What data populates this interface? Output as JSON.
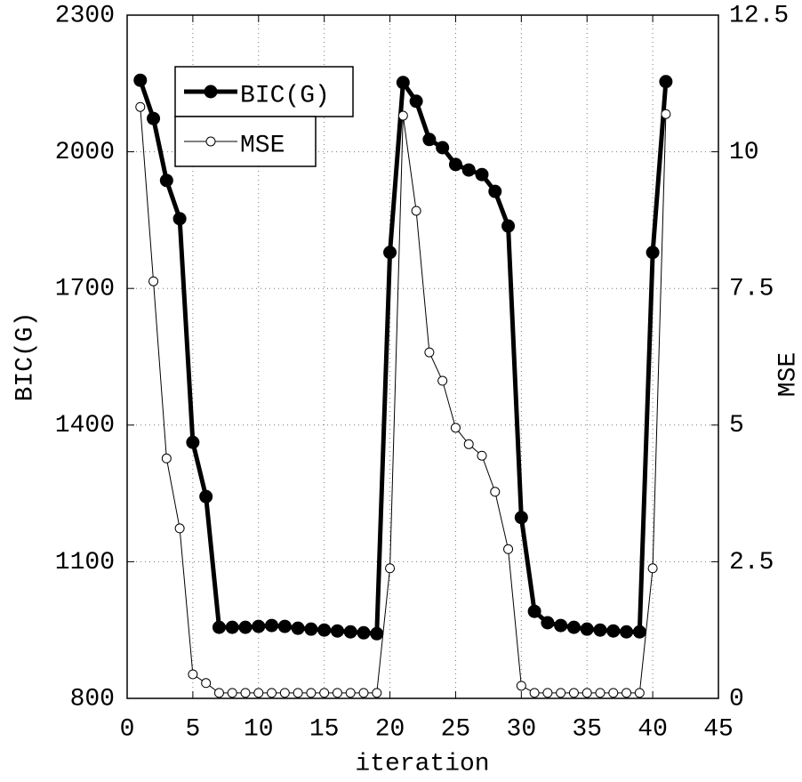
{
  "chart_data": {
    "type": "line",
    "x_label": "iteration",
    "y_label": "BIC(G)",
    "y2_label": "MSE",
    "x": [
      1,
      2,
      3,
      4,
      5,
      6,
      7,
      8,
      9,
      10,
      11,
      12,
      13,
      14,
      15,
      16,
      17,
      18,
      19,
      20,
      21,
      22,
      23,
      24,
      25,
      26,
      27,
      28,
      29,
      30,
      31,
      32,
      33,
      34,
      35,
      36,
      37,
      38,
      39,
      40,
      41
    ],
    "series": [
      {
        "name": "BIC(G)",
        "color": "#000000",
        "axis": "y",
        "values": [
          2157,
          2073,
          1937,
          1853,
          1362,
          1243,
          956,
          956,
          956,
          958,
          960,
          958,
          954,
          952,
          950,
          948,
          946,
          944,
          942,
          1779,
          2152,
          2111,
          2027,
          2009,
          1972,
          1960,
          1950,
          1913,
          1837,
          1197,
          991,
          966,
          960,
          956,
          952,
          950,
          948,
          946,
          946,
          1779,
          2154
        ]
      },
      {
        "name": "MSE",
        "color": "#000000",
        "axis": "y2",
        "values": [
          10.82,
          7.63,
          4.39,
          3.11,
          0.44,
          0.28,
          0.1,
          0.1,
          0.1,
          0.1,
          0.1,
          0.1,
          0.1,
          0.1,
          0.1,
          0.1,
          0.1,
          0.1,
          0.1,
          2.38,
          10.66,
          8.92,
          6.33,
          5.81,
          4.95,
          4.65,
          4.44,
          3.78,
          2.73,
          0.23,
          0.1,
          0.1,
          0.1,
          0.1,
          0.1,
          0.1,
          0.1,
          0.1,
          0.1,
          2.38,
          10.69
        ]
      }
    ],
    "xlim": [
      0,
      45
    ],
    "xticks": [
      0,
      5,
      10,
      15,
      20,
      25,
      30,
      35,
      40,
      45
    ],
    "ylim": [
      800,
      2300
    ],
    "yticks": [
      800,
      1100,
      1400,
      1700,
      2000,
      2300
    ],
    "y2lim": [
      0,
      12.5
    ],
    "y2ticks": [
      0,
      2.5,
      5,
      7.5,
      10,
      12.5
    ],
    "grid": true,
    "legend": "upper-left"
  }
}
